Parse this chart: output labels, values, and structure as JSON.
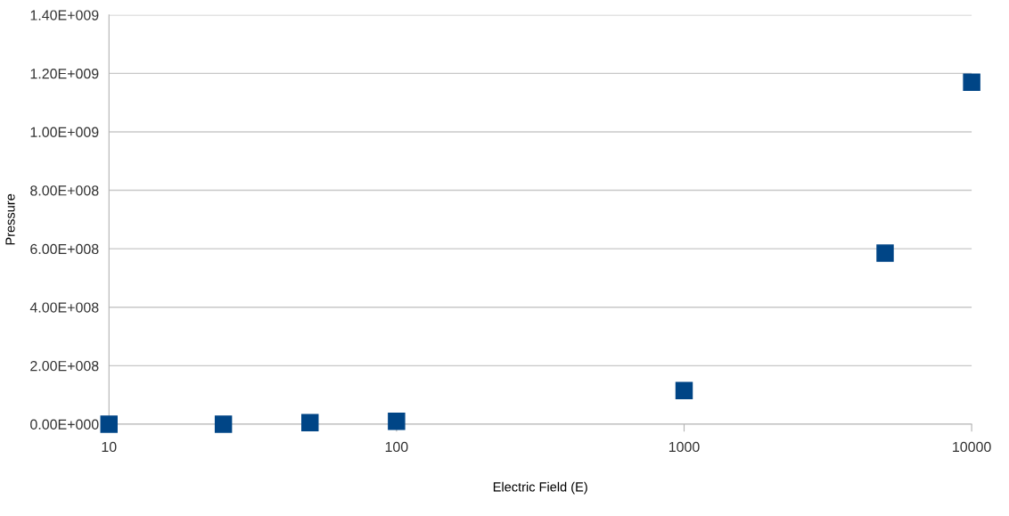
{
  "chart_data": {
    "type": "scatter",
    "xlabel": "Electric Field (E)",
    "ylabel": "Pressure",
    "x": [
      10,
      25,
      50,
      100,
      1000,
      5000,
      10000
    ],
    "series": [
      {
        "color": "#004586",
        "values": [
          0,
          0,
          5000000,
          10000000,
          115000000,
          585000000,
          1170000000
        ]
      }
    ],
    "log": "x",
    "marker": "square",
    "grid": "y",
    "xlim": [
      10,
      10000
    ],
    "xticks": [
      10,
      100,
      1000,
      10000
    ],
    "ylim": [
      0,
      1400000000
    ],
    "yticks": [
      {
        "value": 0,
        "label": "0.00E+000"
      },
      {
        "value": 200000000,
        "label": "2.00E+008"
      },
      {
        "value": 400000000,
        "label": "4.00E+008"
      },
      {
        "value": 600000000,
        "label": "6.00E+008"
      },
      {
        "value": 800000000,
        "label": "8.00E+008"
      },
      {
        "value": 1000000000,
        "label": "1.00E+009"
      },
      {
        "value": 1200000000,
        "label": "1.20E+009"
      },
      {
        "value": 1400000000,
        "label": "1.40E+009"
      }
    ]
  }
}
